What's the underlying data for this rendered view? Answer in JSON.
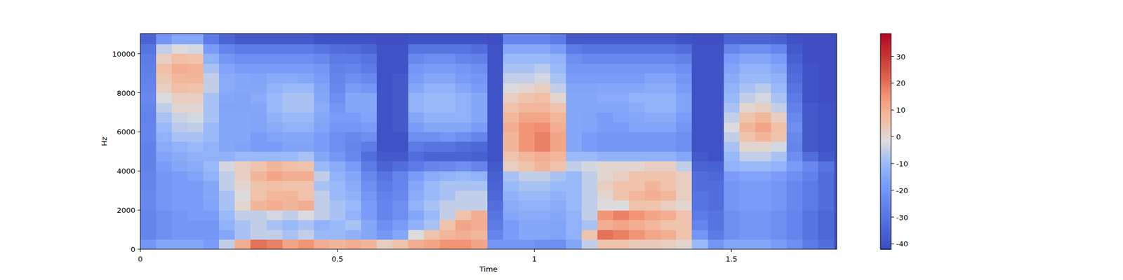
{
  "chart_data": {
    "type": "heatmap",
    "xlabel": "Time",
    "ylabel": "Hz",
    "xlim": [
      0,
      1.767
    ],
    "ylim": [
      0,
      11025
    ],
    "xticks": [
      0,
      0.5,
      1,
      1.5
    ],
    "yticks": [
      0,
      2000,
      4000,
      6000,
      8000,
      10000
    ],
    "zlim": [
      -42,
      38.5
    ],
    "zticks": [
      -40,
      -30,
      -20,
      -10,
      0,
      10,
      20,
      30
    ],
    "x": [
      0.02,
      0.06,
      0.1,
      0.14,
      0.18,
      0.22,
      0.26,
      0.3,
      0.34,
      0.38,
      0.42,
      0.46,
      0.5,
      0.54,
      0.58,
      0.62,
      0.66,
      0.7,
      0.74,
      0.78,
      0.82,
      0.86,
      0.9,
      0.94,
      0.98,
      1.02,
      1.06,
      1.1,
      1.14,
      1.18,
      1.22,
      1.26,
      1.3,
      1.34,
      1.38,
      1.42,
      1.46,
      1.5,
      1.54,
      1.58,
      1.62,
      1.66,
      1.7,
      1.74
    ],
    "y": [
      250,
      750,
      1250,
      1750,
      2250,
      2750,
      3250,
      3750,
      4250,
      4750,
      5250,
      5750,
      6250,
      6750,
      7250,
      7750,
      8250,
      8750,
      9250,
      9750,
      10250,
      10750
    ],
    "values": [
      [
        -20,
        -25,
        -25,
        -25,
        -24,
        -24,
        -25,
        -25,
        -26,
        -26,
        -26,
        -25,
        -25,
        -26,
        -25,
        -24,
        -25,
        -26,
        -27,
        -28,
        -30,
        -35
      ],
      [
        -15,
        -22,
        -22,
        -22,
        -20,
        -20,
        -20,
        -20,
        -18,
        -16,
        -14,
        -12,
        -10,
        -8,
        -5,
        -2,
        2,
        4,
        6,
        2,
        -5,
        -20
      ],
      [
        -15,
        -20,
        -20,
        -20,
        -18,
        -18,
        -18,
        -18,
        -15,
        -14,
        -12,
        -8,
        -6,
        -4,
        0,
        2,
        6,
        8,
        10,
        6,
        -2,
        -15
      ],
      [
        -15,
        -20,
        -20,
        -18,
        -18,
        -18,
        -18,
        -16,
        -14,
        -12,
        -10,
        -8,
        -5,
        -3,
        0,
        2,
        5,
        8,
        9,
        5,
        -3,
        -15
      ],
      [
        -18,
        -20,
        -20,
        -18,
        -16,
        -15,
        -15,
        -12,
        -10,
        -12,
        -12,
        -10,
        -10,
        -8,
        -8,
        -8,
        -5,
        -5,
        -8,
        -12,
        -18,
        -28
      ],
      [
        -5,
        -15,
        -12,
        -10,
        -8,
        -8,
        -5,
        -5,
        -3,
        -12,
        -15,
        -15,
        -15,
        -15,
        -16,
        -15,
        -14,
        -14,
        -16,
        -20,
        -25,
        -35
      ],
      [
        10,
        -8,
        -8,
        -5,
        0,
        -2,
        0,
        2,
        2,
        -10,
        -16,
        -15,
        -15,
        -15,
        -16,
        -16,
        -15,
        -15,
        -18,
        -22,
        -28,
        -38
      ],
      [
        20,
        -5,
        -5,
        -5,
        8,
        5,
        5,
        8,
        5,
        -10,
        -18,
        -18,
        -16,
        -16,
        -15,
        -14,
        -15,
        -16,
        -18,
        -22,
        -28,
        -38
      ],
      [
        18,
        -5,
        -8,
        -3,
        10,
        8,
        6,
        12,
        8,
        -10,
        -18,
        -16,
        -14,
        -12,
        -10,
        -10,
        -12,
        -14,
        -18,
        -22,
        -28,
        -38
      ],
      [
        12,
        -8,
        -10,
        -5,
        8,
        8,
        5,
        10,
        6,
        -10,
        -16,
        -15,
        -12,
        -10,
        -8,
        -8,
        -10,
        -14,
        -18,
        -22,
        -28,
        -38
      ],
      [
        15,
        -5,
        -8,
        -2,
        10,
        5,
        5,
        10,
        5,
        -8,
        -16,
        -15,
        -12,
        -10,
        -8,
        -8,
        -10,
        -15,
        -18,
        -22,
        -28,
        -38
      ],
      [
        10,
        -10,
        -12,
        -5,
        -5,
        -5,
        -8,
        -5,
        -10,
        -15,
        -18,
        -18,
        -16,
        -15,
        -14,
        -15,
        -16,
        -18,
        -20,
        -24,
        -30,
        -40
      ],
      [
        8,
        -10,
        -10,
        -8,
        -8,
        -10,
        -10,
        -12,
        -14,
        -20,
        -22,
        -22,
        -20,
        -18,
        -20,
        -22,
        -24,
        -25,
        -26,
        -28,
        -32,
        -40
      ],
      [
        10,
        -12,
        -8,
        -12,
        -10,
        -12,
        -14,
        -15,
        -18,
        -24,
        -25,
        -24,
        -20,
        -18,
        -15,
        -15,
        -18,
        -22,
        -25,
        -28,
        -33,
        -40
      ],
      [
        8,
        -15,
        -15,
        -18,
        -18,
        -20,
        -22,
        -24,
        -28,
        -32,
        -28,
        -22,
        -18,
        -16,
        -15,
        -15,
        -20,
        -24,
        -28,
        -30,
        -35,
        -40
      ],
      [
        2,
        -20,
        -22,
        -25,
        -25,
        -26,
        -28,
        -30,
        -35,
        -38,
        -40,
        -40,
        -40,
        -40,
        -40,
        -40,
        -40,
        -40,
        -40,
        -40,
        -40,
        -41
      ],
      [
        5,
        -15,
        -18,
        -22,
        -22,
        -24,
        -25,
        -25,
        -32,
        -38,
        -40,
        -40,
        -38,
        -38,
        -38,
        -38,
        -38,
        -38,
        -40,
        -40,
        -40,
        -41
      ],
      [
        10,
        -2,
        -12,
        -15,
        -12,
        -14,
        -15,
        -18,
        -28,
        -32,
        -28,
        -22,
        -18,
        -15,
        -12,
        -12,
        -15,
        -18,
        -20,
        -24,
        -30,
        -40
      ],
      [
        12,
        5,
        -8,
        -10,
        -8,
        -10,
        -10,
        -14,
        -25,
        -35,
        -30,
        -22,
        -15,
        -12,
        -10,
        -10,
        -12,
        -15,
        -18,
        -22,
        -30,
        -40
      ],
      [
        15,
        8,
        5,
        -5,
        -5,
        -8,
        -8,
        -12,
        -24,
        -35,
        -30,
        -20,
        -15,
        -12,
        -10,
        -10,
        -12,
        -15,
        -18,
        -22,
        -30,
        -40
      ],
      [
        15,
        10,
        12,
        5,
        -5,
        -5,
        -8,
        -10,
        -22,
        -35,
        -32,
        -22,
        -15,
        -12,
        -12,
        -12,
        -15,
        -18,
        -20,
        -25,
        -30,
        -40
      ],
      [
        12,
        8,
        10,
        10,
        -5,
        -5,
        -8,
        -12,
        -25,
        -36,
        -34,
        -25,
        -18,
        -15,
        -15,
        -15,
        -18,
        -20,
        -22,
        -26,
        -32,
        -40
      ],
      [
        -20,
        -25,
        -28,
        -30,
        -32,
        -34,
        -35,
        -36,
        -38,
        -40,
        -40,
        -40,
        -40,
        -40,
        -40,
        -40,
        -40,
        -40,
        -40,
        -40,
        -40,
        -41
      ],
      [
        -20,
        -18,
        -18,
        -15,
        -14,
        -12,
        -10,
        -8,
        2,
        5,
        8,
        8,
        10,
        8,
        5,
        2,
        -2,
        -5,
        -8,
        -10,
        -15,
        -25
      ],
      [
        -20,
        -15,
        -15,
        -14,
        -12,
        -10,
        -8,
        -5,
        5,
        8,
        15,
        15,
        15,
        12,
        8,
        5,
        0,
        -5,
        -8,
        -10,
        -15,
        -25
      ],
      [
        -22,
        -15,
        -15,
        -14,
        -12,
        -10,
        -8,
        -5,
        8,
        10,
        18,
        18,
        16,
        12,
        8,
        6,
        2,
        -3,
        -6,
        -10,
        -15,
        -25
      ],
      [
        -22,
        -16,
        -16,
        -15,
        -14,
        -12,
        -10,
        -8,
        5,
        8,
        12,
        12,
        10,
        8,
        5,
        0,
        -5,
        -8,
        -10,
        -12,
        -18,
        -28
      ],
      [
        -15,
        -12,
        -12,
        -12,
        -10,
        -10,
        -10,
        -10,
        -5,
        -10,
        -15,
        -15,
        -15,
        -15,
        -15,
        -15,
        -16,
        -18,
        -20,
        -22,
        -28,
        -38
      ],
      [
        -5,
        5,
        -8,
        -5,
        -5,
        -5,
        -5,
        -5,
        -3,
        -10,
        -18,
        -18,
        -16,
        -16,
        -15,
        -15,
        -16,
        -18,
        -20,
        -24,
        -30,
        -38
      ],
      [
        5,
        20,
        10,
        15,
        -2,
        0,
        2,
        0,
        0,
        -12,
        -20,
        -20,
        -18,
        -18,
        -15,
        -14,
        -15,
        -18,
        -20,
        -24,
        -30,
        -38
      ],
      [
        5,
        18,
        12,
        18,
        -2,
        5,
        5,
        2,
        0,
        -12,
        -20,
        -20,
        -18,
        -16,
        -15,
        -14,
        -15,
        -18,
        -20,
        -24,
        -30,
        -38
      ],
      [
        3,
        15,
        10,
        15,
        5,
        8,
        5,
        5,
        0,
        -12,
        -20,
        -20,
        -16,
        -15,
        -14,
        -12,
        -15,
        -18,
        -20,
        -24,
        -30,
        -38
      ],
      [
        3,
        12,
        8,
        12,
        5,
        10,
        8,
        5,
        2,
        -12,
        -20,
        -20,
        -16,
        -14,
        -12,
        -12,
        -14,
        -16,
        -20,
        -24,
        -30,
        -38
      ],
      [
        2,
        10,
        5,
        10,
        2,
        8,
        5,
        5,
        2,
        -12,
        -20,
        -20,
        -16,
        -14,
        -12,
        -12,
        -14,
        -16,
        -20,
        -24,
        -30,
        -38
      ],
      [
        0,
        5,
        5,
        5,
        0,
        2,
        2,
        2,
        -5,
        -15,
        -22,
        -22,
        -20,
        -18,
        -16,
        -16,
        -18,
        -20,
        -22,
        -26,
        -32,
        -40
      ],
      [
        -10,
        -20,
        -25,
        -28,
        -30,
        -30,
        -32,
        -32,
        -35,
        -38,
        -40,
        -40,
        -40,
        -40,
        -40,
        -40,
        -40,
        -40,
        -40,
        -40,
        -40,
        -41
      ],
      [
        -20,
        -28,
        -30,
        -30,
        -32,
        -32,
        -32,
        -34,
        -36,
        -40,
        -40,
        -40,
        -40,
        -40,
        -40,
        -40,
        -40,
        -40,
        -40,
        -40,
        -40,
        -41
      ],
      [
        -15,
        -22,
        -22,
        -22,
        -20,
        -20,
        -20,
        -18,
        -12,
        -10,
        -8,
        -5,
        -2,
        -5,
        -8,
        -10,
        -12,
        -14,
        -16,
        -18,
        -25,
        -35
      ],
      [
        -15,
        -20,
        -20,
        -20,
        -18,
        -18,
        -18,
        -16,
        -10,
        -5,
        0,
        5,
        8,
        5,
        0,
        -5,
        -8,
        -10,
        -12,
        -15,
        -22,
        -35
      ],
      [
        -15,
        -20,
        -20,
        -20,
        -18,
        -18,
        -18,
        -16,
        -10,
        -5,
        0,
        8,
        12,
        8,
        2,
        -3,
        -6,
        -10,
        -12,
        -15,
        -22,
        -35
      ],
      [
        -18,
        -22,
        -22,
        -22,
        -20,
        -20,
        -20,
        -18,
        -12,
        -8,
        -3,
        5,
        6,
        2,
        -5,
        -8,
        -10,
        -12,
        -15,
        -18,
        -25,
        -36
      ],
      [
        -22,
        -25,
        -25,
        -25,
        -24,
        -24,
        -24,
        -22,
        -18,
        -22,
        -25,
        -24,
        -22,
        -24,
        -26,
        -28,
        -30,
        -32,
        -34,
        -36,
        -38,
        -40
      ],
      [
        -28,
        -30,
        -30,
        -30,
        -28,
        -28,
        -28,
        -26,
        -24,
        -32,
        -38,
        -38,
        -38,
        -38,
        -38,
        -40,
        -40,
        -40,
        -40,
        -41,
        -41,
        -41
      ],
      [
        -32,
        -34,
        -34,
        -34,
        -32,
        -32,
        -32,
        -32,
        -30,
        -38,
        -40,
        -40,
        -40,
        -40,
        -40,
        -41,
        -41,
        -41,
        -41,
        -41,
        -41,
        -41
      ]
    ]
  }
}
